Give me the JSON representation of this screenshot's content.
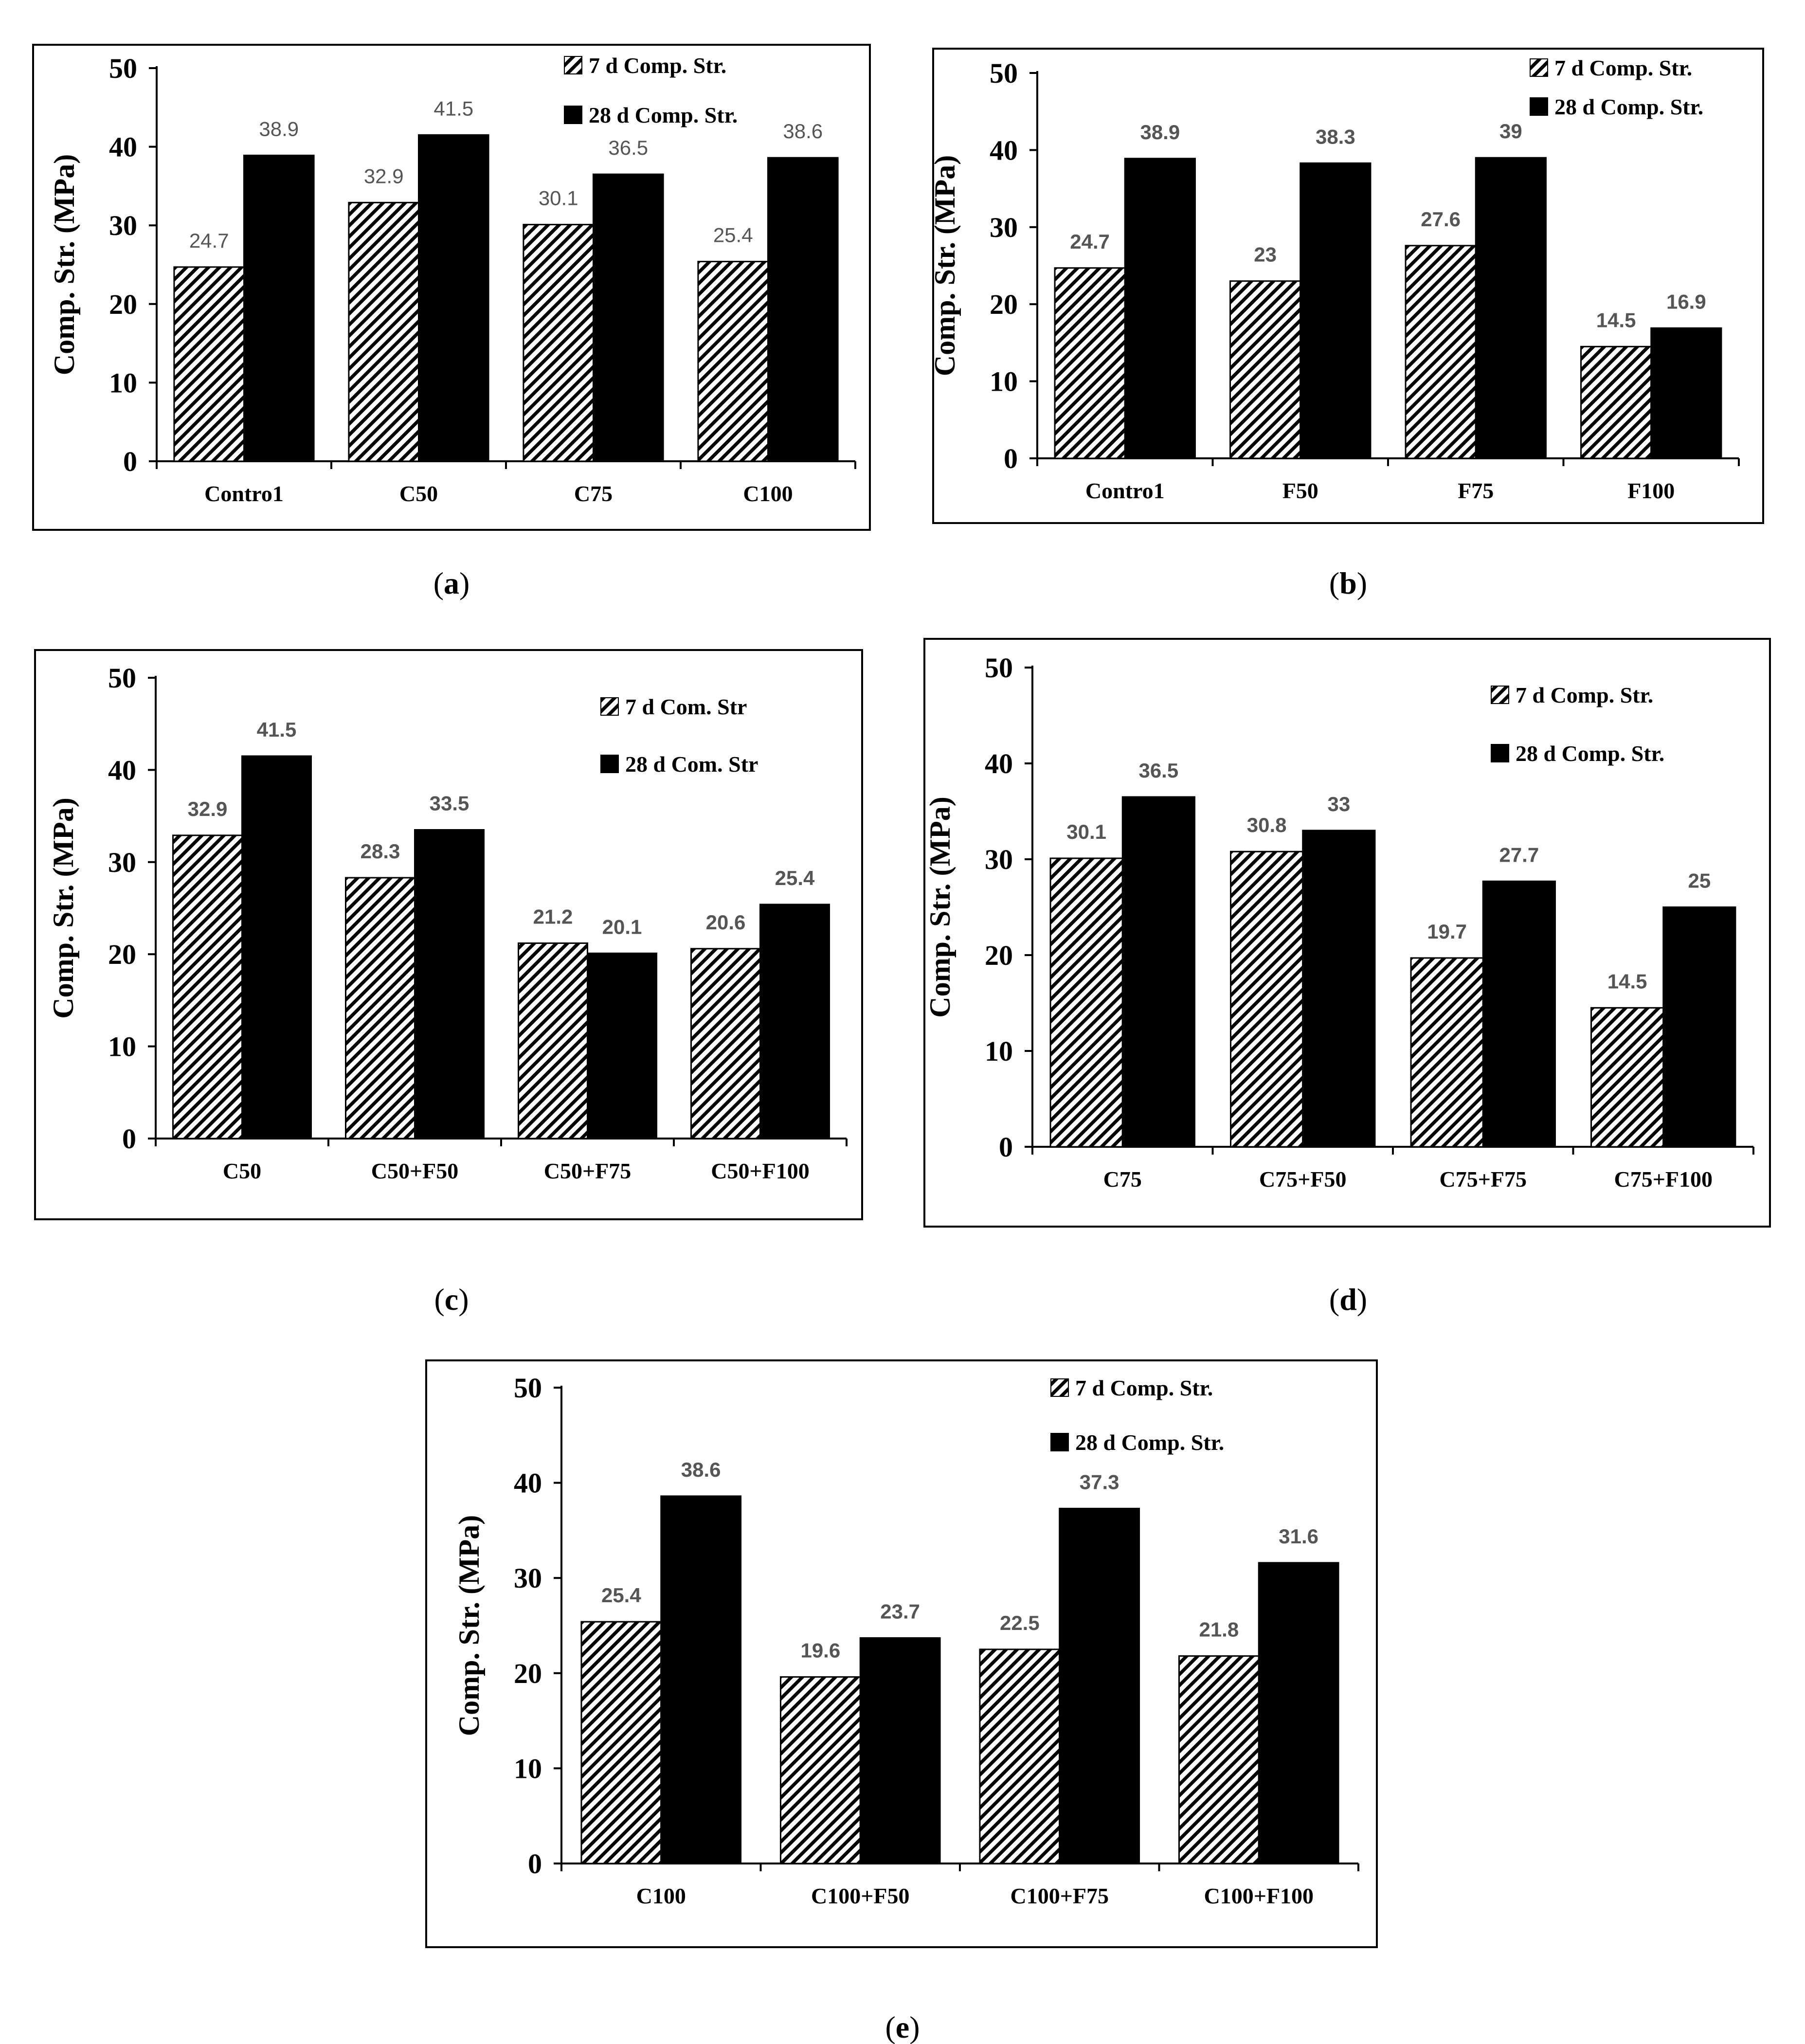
{
  "figure": {
    "colors": {
      "seven_day_pattern": "#000000",
      "twenty_eight_day_fill": "#000000",
      "value_label": "#555555",
      "frame": "#000000"
    }
  },
  "chart_data": [
    {
      "type": "bar",
      "caption": "a",
      "title": "",
      "xlabel": "",
      "ylabel": "Comp. Str. (MPa)",
      "ylim": [
        0,
        50
      ],
      "yticks": [
        0,
        10,
        20,
        30,
        40,
        50
      ],
      "legend_position": "top-right",
      "categories": [
        "Contro1",
        "C50",
        "C75",
        "C100"
      ],
      "series": [
        {
          "name": "7 d Comp. Str.",
          "values": [
            24.7,
            32.9,
            30.1,
            25.4
          ],
          "labels": [
            "24.7",
            "32.9",
            "30.1",
            "25.4"
          ]
        },
        {
          "name": "28 d Comp. Str.",
          "values": [
            38.9,
            41.5,
            36.5,
            38.6
          ],
          "labels": [
            "38.9",
            "41.5",
            "36.5",
            "38.6"
          ]
        }
      ]
    },
    {
      "type": "bar",
      "caption": "b",
      "title": "",
      "xlabel": "",
      "ylabel": "Comp. Str. (MPa)",
      "ylim": [
        0,
        50
      ],
      "yticks": [
        0,
        10,
        20,
        30,
        40,
        50
      ],
      "legend_position": "top-right",
      "categories": [
        "Contro1",
        "F50",
        "F75",
        "F100"
      ],
      "series": [
        {
          "name": "7 d Comp. Str.",
          "values": [
            24.7,
            23,
            27.6,
            14.5
          ],
          "labels": [
            "24.7",
            "23",
            "27.6",
            "14.5"
          ]
        },
        {
          "name": "28 d Comp. Str.",
          "values": [
            38.9,
            38.3,
            39,
            16.9
          ],
          "labels": [
            "38.9",
            "38.3",
            "39",
            "16.9"
          ]
        }
      ]
    },
    {
      "type": "bar",
      "caption": "c",
      "title": "",
      "xlabel": "",
      "ylabel": "Comp. Str. (MPa)",
      "ylim": [
        0,
        50
      ],
      "yticks": [
        0,
        10,
        20,
        30,
        40,
        50
      ],
      "legend_position": "top-right",
      "categories": [
        "C50",
        "C50+F50",
        "C50+F75",
        "C50+F100"
      ],
      "series": [
        {
          "name": "7 d Com. Str",
          "values": [
            32.9,
            28.3,
            21.2,
            20.6
          ],
          "labels": [
            "32.9",
            "28.3",
            "21.2",
            "20.6"
          ]
        },
        {
          "name": "28 d Com. Str",
          "values": [
            41.5,
            33.5,
            20.1,
            25.4
          ],
          "labels": [
            "41.5",
            "33.5",
            "20.1",
            "25.4"
          ]
        }
      ]
    },
    {
      "type": "bar",
      "caption": "d",
      "title": "",
      "xlabel": "",
      "ylabel": "Comp. Str. (MPa)",
      "ylim": [
        0,
        50
      ],
      "yticks": [
        0,
        10,
        20,
        30,
        40,
        50
      ],
      "legend_position": "top-right",
      "categories": [
        "C75",
        "C75+F50",
        "C75+F75",
        "C75+F100"
      ],
      "series": [
        {
          "name": "7 d Comp. Str.",
          "values": [
            30.1,
            30.8,
            19.7,
            14.5
          ],
          "labels": [
            "30.1",
            "30.8",
            "19.7",
            "14.5"
          ]
        },
        {
          "name": "28 d Comp. Str.",
          "values": [
            36.5,
            33,
            27.7,
            25
          ],
          "labels": [
            "36.5",
            "33",
            "27.7",
            "25"
          ]
        }
      ]
    },
    {
      "type": "bar",
      "caption": "e",
      "title": "",
      "xlabel": "",
      "ylabel": "Comp. Str. (MPa)",
      "ylim": [
        0,
        50
      ],
      "yticks": [
        0,
        10,
        20,
        30,
        40,
        50
      ],
      "legend_position": "top-right",
      "categories": [
        "C100",
        "C100+F50",
        "C100+F75",
        "C100+F100"
      ],
      "series": [
        {
          "name": "7 d Comp. Str.",
          "values": [
            25.4,
            19.6,
            22.5,
            21.8
          ],
          "labels": [
            "25.4",
            "19.6",
            "22.5",
            "21.8"
          ]
        },
        {
          "name": "28 d Comp. Str.",
          "values": [
            38.6,
            23.7,
            37.3,
            31.6
          ],
          "labels": [
            "38.6",
            "23.7",
            "37.3",
            "31.6"
          ]
        }
      ]
    }
  ]
}
